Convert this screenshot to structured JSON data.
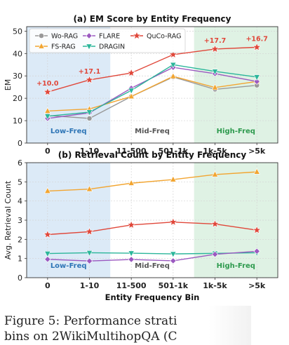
{
  "figure": {
    "caption_line1": "Figure 5:  Performance strati",
    "caption_line2": "bins on 2WikiMultihopQA (C"
  },
  "shared_xlabel": "Entity Frequency Bin",
  "chart_data": [
    {
      "type": "line",
      "title": "(a) EM Score by Entity Frequency",
      "xlabel": "",
      "ylabel": "EM",
      "categories": [
        "0",
        "1-10",
        "11-500",
        "501-1k",
        "1k-5k",
        ">5k"
      ],
      "ylim": [
        0,
        52
      ],
      "yticks": [
        0,
        10,
        20,
        30,
        40,
        50
      ],
      "grid": true,
      "legend": "top-left",
      "regions": [
        {
          "label": "Low-Freq",
          "color": "#dceaf7",
          "text_color": "#2e75b6"
        },
        {
          "label": "Mid-Freq",
          "color": "#ffffff",
          "text_color": "#555555"
        },
        {
          "label": "High-Freq",
          "color": "#dff2e4",
          "text_color": "#2e9a4e"
        }
      ],
      "series": [
        {
          "name": "Wo-RAG",
          "color": "#999999",
          "marker": "circle",
          "values": [
            12.3,
            11.0,
            20.8,
            29.5,
            24.0,
            25.8
          ]
        },
        {
          "name": "FS-RAG",
          "color": "#f2a531",
          "marker": "triangle-up",
          "values": [
            14.3,
            15.2,
            20.8,
            29.8,
            24.8,
            27.5
          ]
        },
        {
          "name": "FLARE",
          "color": "#9b59c0",
          "marker": "diamond",
          "values": [
            11.0,
            13.5,
            24.5,
            33.8,
            31.0,
            27.5
          ]
        },
        {
          "name": "DRAGIN",
          "color": "#2bb69a",
          "marker": "triangle-down",
          "values": [
            12.0,
            13.8,
            23.5,
            35.0,
            32.0,
            29.5
          ]
        },
        {
          "name": "QuCo-RAG",
          "color": "#e0473a",
          "marker": "star",
          "values": [
            22.8,
            28.2,
            31.3,
            39.5,
            42.0,
            42.8
          ]
        }
      ],
      "annotations": [
        {
          "category": "0",
          "text": "+10.0"
        },
        {
          "category": "1-10",
          "text": "+17.1"
        },
        {
          "category": "1k-5k",
          "text": "+17.7"
        },
        {
          "category": ">5k",
          "text": "+16.7"
        }
      ]
    },
    {
      "type": "line",
      "title": "(b) Retrieval Count by Entity Frequency",
      "xlabel": "Entity Frequency Bin",
      "ylabel": "Avg. Retrieval Count",
      "categories": [
        "0",
        "1-10",
        "11-500",
        "501-1k",
        "1k-5k",
        ">5k"
      ],
      "ylim": [
        0,
        6
      ],
      "yticks": [
        0,
        1,
        2,
        3,
        4,
        5,
        6
      ],
      "grid": true,
      "regions": [
        {
          "label": "Low-Freq",
          "color": "#dceaf7",
          "text_color": "#2e75b6"
        },
        {
          "label": "Mid-Freq",
          "color": "#ffffff",
          "text_color": "#555555"
        },
        {
          "label": "High-Freq",
          "color": "#dff2e4",
          "text_color": "#2e9a4e"
        }
      ],
      "series": [
        {
          "name": "FS-RAG",
          "color": "#f2a531",
          "marker": "triangle-up",
          "values": [
            4.52,
            4.62,
            4.93,
            5.12,
            5.38,
            5.52
          ]
        },
        {
          "name": "QuCo-RAG",
          "color": "#e0473a",
          "marker": "star",
          "values": [
            2.25,
            2.4,
            2.75,
            2.9,
            2.8,
            2.48
          ]
        },
        {
          "name": "DRAGIN",
          "color": "#2bb69a",
          "marker": "triangle-down",
          "values": [
            1.26,
            1.3,
            1.28,
            1.24,
            1.27,
            1.3
          ]
        },
        {
          "name": "FLARE",
          "color": "#9b59c0",
          "marker": "diamond",
          "values": [
            0.96,
            0.87,
            0.95,
            0.88,
            1.22,
            1.38
          ]
        }
      ]
    }
  ]
}
